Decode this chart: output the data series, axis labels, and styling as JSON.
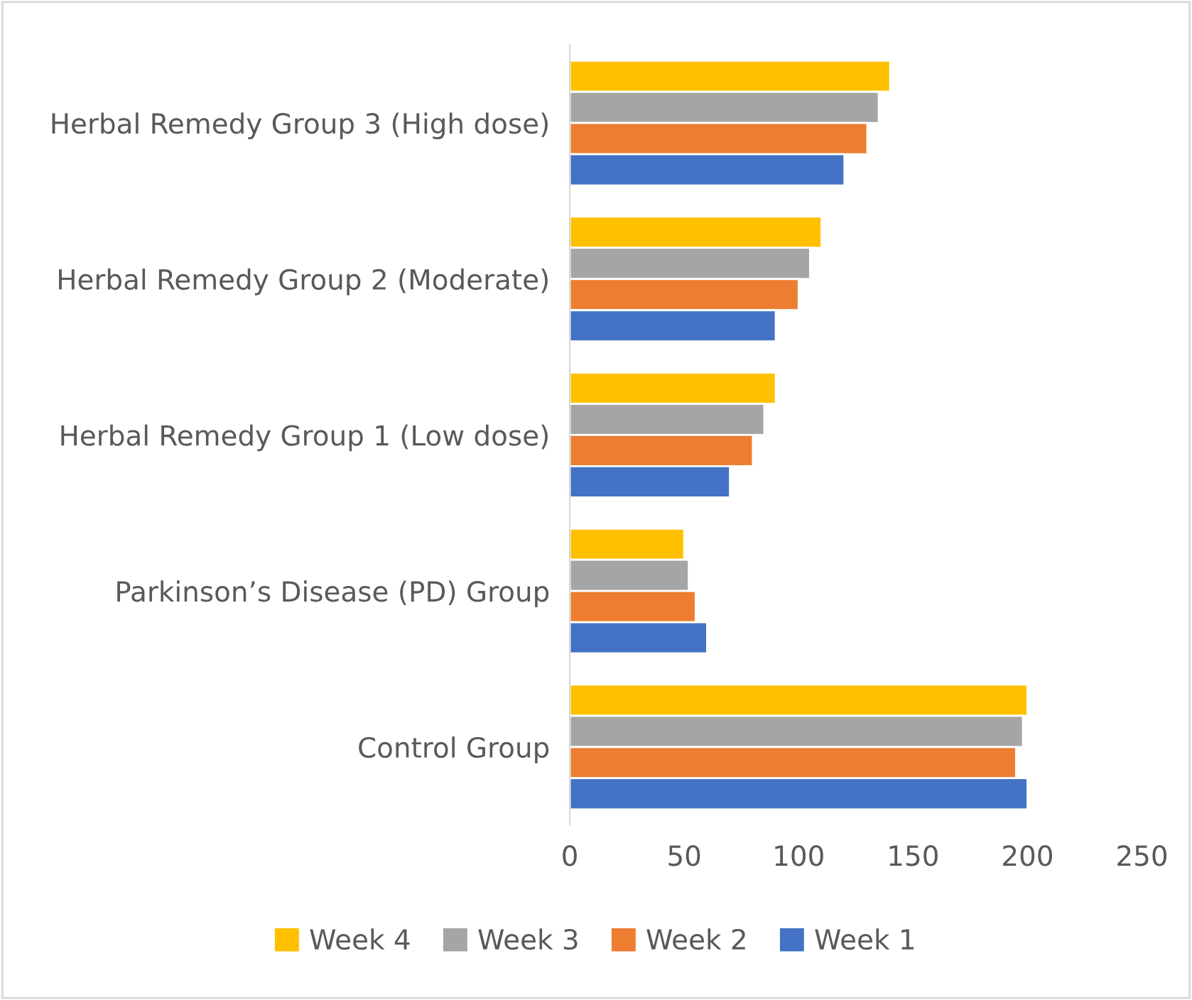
{
  "chart_data": {
    "type": "bar",
    "orientation": "horizontal",
    "categories": [
      "Herbal Remedy Group 3 (High dose)",
      "Herbal Remedy Group 2 (Moderate)",
      "Herbal Remedy Group 1 (Low dose)",
      "Parkinson’s Disease (PD) Group",
      "Control Group"
    ],
    "series": [
      {
        "name": "Week 4",
        "color": "#ffc000",
        "values": [
          140,
          110,
          90,
          50,
          200
        ]
      },
      {
        "name": "Week 3",
        "color": "#a5a5a5",
        "values": [
          135,
          105,
          85,
          52,
          198
        ]
      },
      {
        "name": "Week 2",
        "color": "#ed7d31",
        "values": [
          130,
          100,
          80,
          55,
          195
        ]
      },
      {
        "name": "Week 1",
        "color": "#4472c4",
        "values": [
          120,
          90,
          70,
          60,
          200
        ]
      }
    ],
    "xlim": [
      0,
      250
    ],
    "xticks": [
      0,
      50,
      100,
      150,
      200,
      250
    ],
    "grid": false,
    "legend": "bottom"
  }
}
